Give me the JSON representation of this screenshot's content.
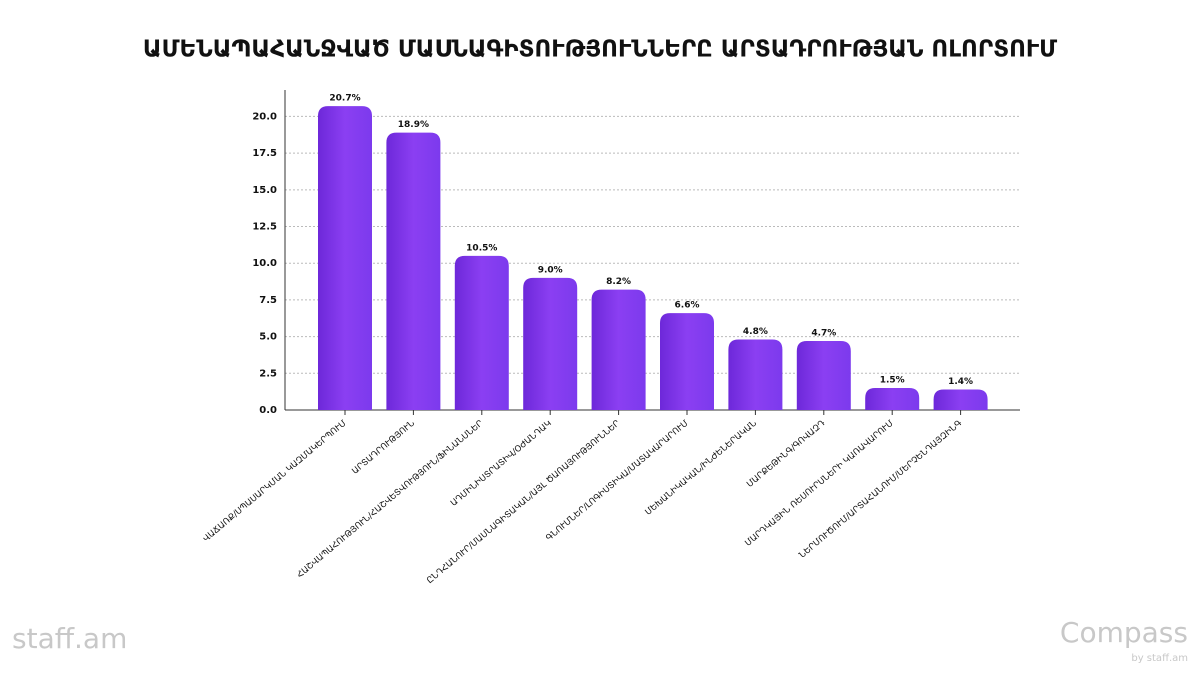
{
  "chart_data": {
    "type": "bar",
    "title": "ԱՄԵՆԱՊԱՀԱՆՋՎԱԾ ՄԱՍՆԱԳԻՏՈՒԹՅՈՒՆՆԵՐԸ ԱՐՏԱԴՐՈՒԹՅԱՆ ՈԼՈՐՏՈՒՄ",
    "categories": [
      "ՎԱՃԱՌՔ/ՍՊԱՍԱՐԿՄԱՆ ԿԱԶՄԱԿԵՐՊՈՒՄ",
      "ԱՐՏԱԴՐՈՒԹՅՈՒՆ",
      "ՀԱՇՎԱՊԱՀՈՒԹՅՈՒՆ/ՀԱՇՎԵՏՎՈՒԹՅՈՒՆ/ՖԻՆԱՆՍՆԵՐ",
      "ԱԴՄԻՆԻՍՏՐԱՏԻՎ/ՕԺԱՆԴԱԿ",
      "ԸՆԴՀԱՆՈՒՐ/ՄԱՍՆԱԳԻՏԱԿԱՆ/ԱՅԼ ԾԱՌԱՅՈՒԹՅՈՒՆՆԵՐ",
      "ԳՆՈՒՄՆԵՐ/ԼՈԳԻՍՏԻԿԱ/ՄԱՏԱԿԱՐԱՐՈՒՄ",
      "ՄԵԽԱՆԻԿԱԿԱՆ/ԻՆԺԵՆԵՐԱԿԱՆ",
      "ՄԱՐՔԵԹԻՆԳ/ԳՈՎԱԶԴ",
      "ՄԱՐԴԿԱՅԻՆ ՌԵՍՈՒՐՍՆԵՐԻ ԿԱՌԱՎԱՐՈՒՄ",
      "ՆԵՐՄՈՒԾՈՒՄ/ԱՐՏԱՀԱՆՈՒՄ/ՄԵՐՉԵՆԴԱՅԶԻՆԳ"
    ],
    "values": [
      20.7,
      18.9,
      10.5,
      9.0,
      8.2,
      6.6,
      4.8,
      4.7,
      1.5,
      1.4
    ],
    "value_labels": [
      "20.7%",
      "18.9%",
      "10.5%",
      "9.0%",
      "8.2%",
      "6.6%",
      "4.8%",
      "4.7%",
      "1.5%",
      "1.4%"
    ],
    "color": "#7c3aed",
    "ylim": [
      0,
      21.8
    ],
    "yticks": [
      {
        "value": 0,
        "label": "0.0"
      },
      2.5,
      {
        "value": 5,
        "label": "5.0"
      },
      7.5,
      {
        "value": 10,
        "label": "10.0"
      },
      12.5,
      {
        "value": 15,
        "label": "15.0"
      },
      17.5,
      {
        "value": 20,
        "label": "20.0"
      }
    ],
    "grid": true
  },
  "branding": {
    "left": "staff.am",
    "right": "Compass",
    "right_sub": "by staff.am"
  }
}
